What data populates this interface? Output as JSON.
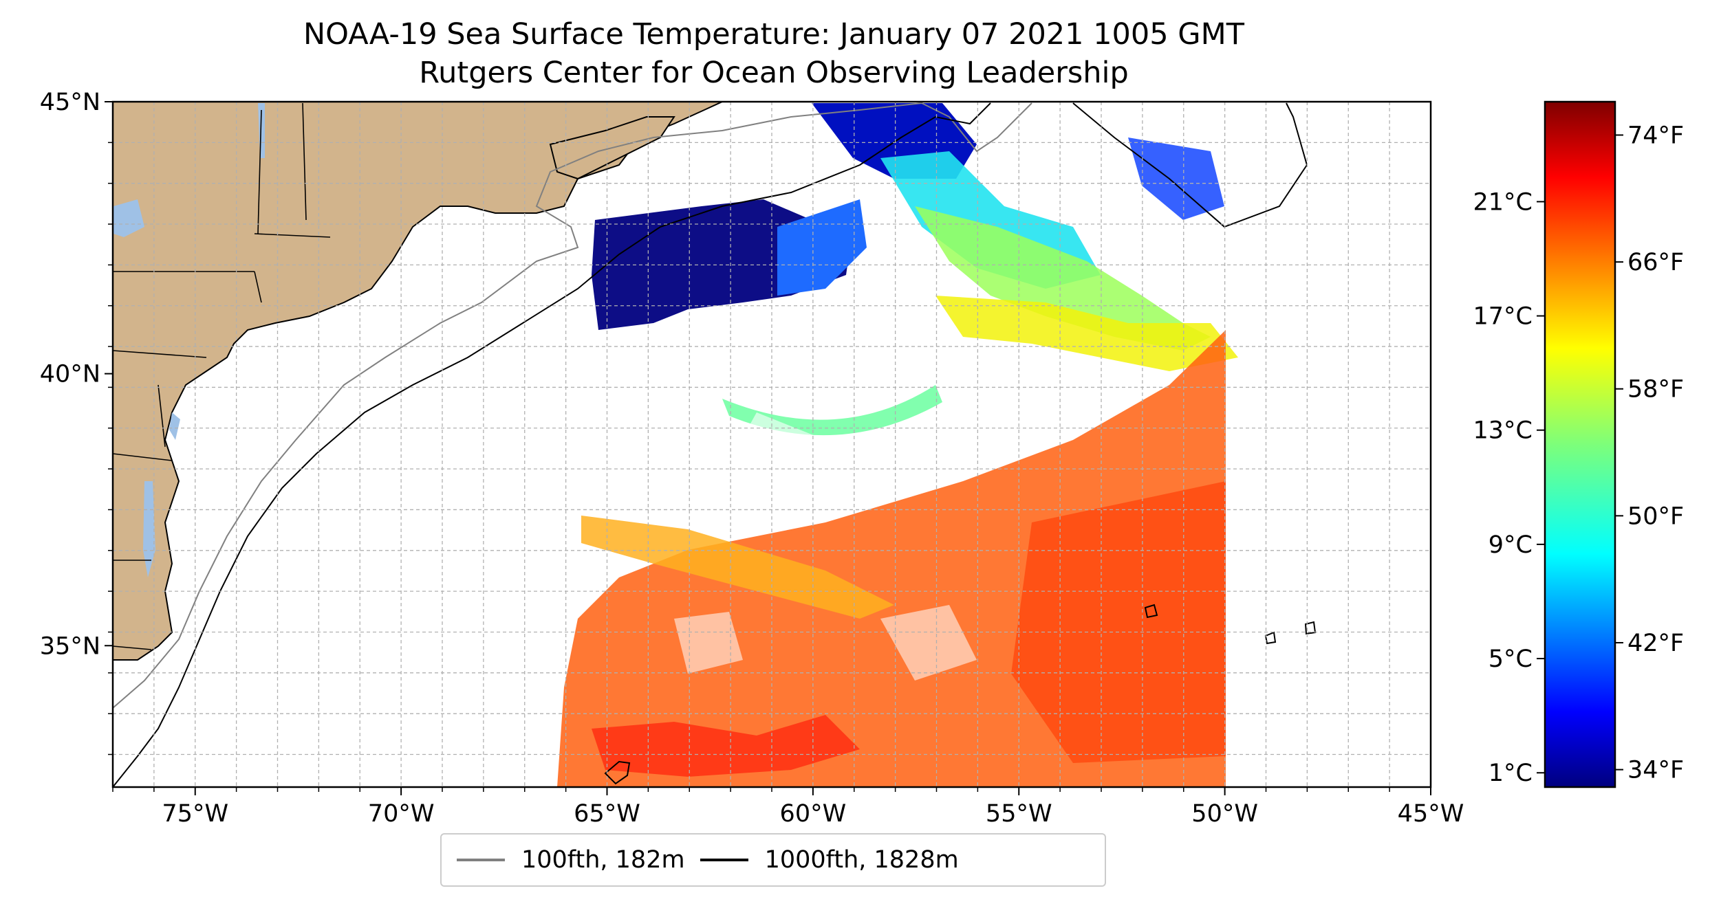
{
  "title": "NOAA-19 Sea Surface Temperature: January 07 2021 1005 GMT",
  "subtitle": "Rutgers Center for Ocean Observing Leadership",
  "map": {
    "lon_range": [
      -77,
      -45
    ],
    "lat_range": [
      32.4,
      45
    ],
    "lon_ticks": [
      {
        "value": -75,
        "label": "75°W"
      },
      {
        "value": -70,
        "label": "70°W"
      },
      {
        "value": -65,
        "label": "65°W"
      },
      {
        "value": -60,
        "label": "60°W"
      },
      {
        "value": -55,
        "label": "55°W"
      },
      {
        "value": -50,
        "label": "50°W"
      },
      {
        "value": -45,
        "label": "45°W"
      }
    ],
    "lat_ticks": [
      {
        "value": 45,
        "label": "45°N"
      },
      {
        "value": 40,
        "label": "40°N"
      },
      {
        "value": 35,
        "label": "35°N"
      }
    ],
    "grid": true,
    "land_color": "#d2b48c",
    "water_color": "#9fc1e6"
  },
  "colorbar": {
    "range_c": [
      0.5,
      24.5
    ],
    "celsius_ticks": [
      {
        "value": 1,
        "label": "1°C"
      },
      {
        "value": 5,
        "label": "5°C"
      },
      {
        "value": 9,
        "label": "9°C"
      },
      {
        "value": 13,
        "label": "13°C"
      },
      {
        "value": 17,
        "label": "17°C"
      },
      {
        "value": 21,
        "label": "21°C"
      }
    ],
    "fahrenheit_ticks": [
      {
        "value": 34,
        "label": "34°F"
      },
      {
        "value": 42,
        "label": "42°F"
      },
      {
        "value": 50,
        "label": "50°F"
      },
      {
        "value": 58,
        "label": "58°F"
      },
      {
        "value": 66,
        "label": "66°F"
      },
      {
        "value": 74,
        "label": "74°F"
      }
    ],
    "colormap": "jet"
  },
  "legend": [
    {
      "label": "100fth, 182m",
      "color": "#808080"
    },
    {
      "label": "1000fth, 1828m",
      "color": "#000000"
    }
  ]
}
